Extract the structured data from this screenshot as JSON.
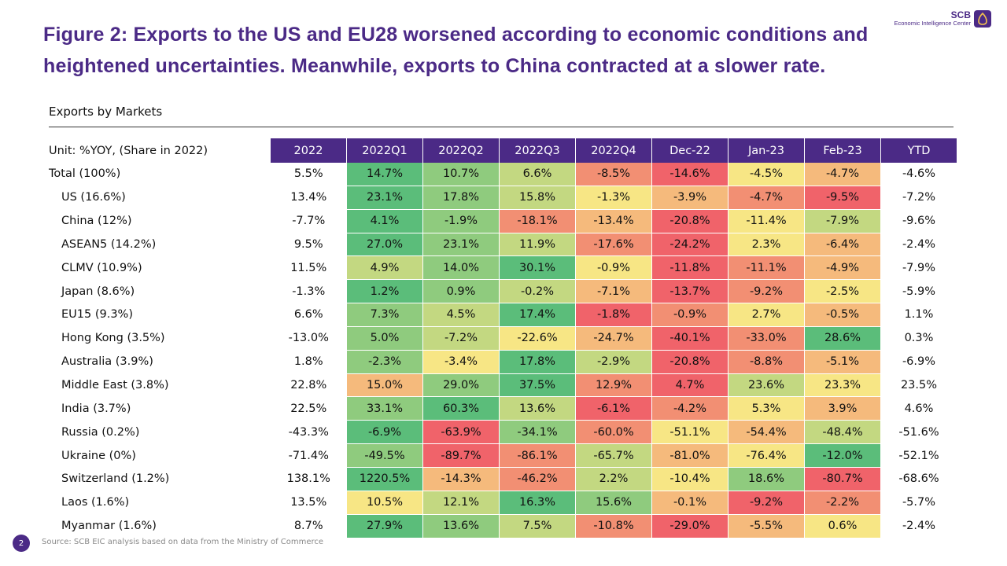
{
  "title": "Figure 2: Exports to the US and EU28 worsened according to economic conditions and heightened uncertainties. Meanwhile, exports to China contracted at a slower rate.",
  "logo": {
    "brand": "SCB",
    "unit": "Economic Intelligence Center"
  },
  "footer": {
    "source": "Source: SCB EIC analysis based on data from the Ministry of Commerce",
    "page": "2"
  },
  "colors": {
    "header_bg": "#4b2a86",
    "high": "#5bbd7a",
    "mid": "#f7e685",
    "low": "#f0636a"
  },
  "chart_data": {
    "type": "table",
    "title": "Exports by Markets",
    "unit_label": "Unit: %YOY, (Share in 2022)",
    "columns": [
      "2022",
      "2022Q1",
      "2022Q2",
      "2022Q3",
      "2022Q4",
      "Dec-22",
      "Jan-23",
      "Feb-23",
      "YTD"
    ],
    "colored_columns": [
      "2022Q1",
      "2022Q2",
      "2022Q3",
      "2022Q4",
      "Dec-22",
      "Jan-23",
      "Feb-23"
    ],
    "rows": [
      {
        "market": "Total (100%)",
        "values": [
          "5.5%",
          "14.7%",
          "10.7%",
          "6.6%",
          "-8.5%",
          "-14.6%",
          "-4.5%",
          "-4.7%",
          "-4.6%"
        ]
      },
      {
        "market": "US (16.6%)",
        "values": [
          "13.4%",
          "23.1%",
          "17.8%",
          "15.8%",
          "-1.3%",
          "-3.9%",
          "-4.7%",
          "-9.5%",
          "-7.2%"
        ]
      },
      {
        "market": "China (12%)",
        "values": [
          "-7.7%",
          "4.1%",
          "-1.9%",
          "-18.1%",
          "-13.4%",
          "-20.8%",
          "-11.4%",
          "-7.9%",
          "-9.6%"
        ]
      },
      {
        "market": "ASEAN5 (14.2%)",
        "values": [
          "9.5%",
          "27.0%",
          "23.1%",
          "11.9%",
          "-17.6%",
          "-24.2%",
          "2.3%",
          "-6.4%",
          "-2.4%"
        ]
      },
      {
        "market": "CLMV (10.9%)",
        "values": [
          "11.5%",
          "4.9%",
          "14.0%",
          "30.1%",
          "-0.9%",
          "-11.8%",
          "-11.1%",
          "-4.9%",
          "-7.9%"
        ]
      },
      {
        "market": "Japan (8.6%)",
        "values": [
          "-1.3%",
          "1.2%",
          "0.9%",
          "-0.2%",
          "-7.1%",
          "-13.7%",
          "-9.2%",
          "-2.5%",
          "-5.9%"
        ]
      },
      {
        "market": "EU15 (9.3%)",
        "values": [
          "6.6%",
          "7.3%",
          "4.5%",
          "17.4%",
          "-1.8%",
          "-0.9%",
          "2.7%",
          "-0.5%",
          "1.1%"
        ]
      },
      {
        "market": "Hong Kong  (3.5%)",
        "values": [
          "-13.0%",
          "5.0%",
          "-7.2%",
          "-22.6%",
          "-24.7%",
          "-40.1%",
          "-33.0%",
          "28.6%",
          "0.3%"
        ]
      },
      {
        "market": "Australia (3.9%)",
        "values": [
          "1.8%",
          "-2.3%",
          "-3.4%",
          "17.8%",
          "-2.9%",
          "-20.8%",
          "-8.8%",
          "-5.1%",
          "-6.9%"
        ]
      },
      {
        "market": "Middle East  (3.8%)",
        "values": [
          "22.8%",
          "15.0%",
          "29.0%",
          "37.5%",
          "12.9%",
          "4.7%",
          "23.6%",
          "23.3%",
          "23.5%"
        ]
      },
      {
        "market": "India (3.7%)",
        "values": [
          "22.5%",
          "33.1%",
          "60.3%",
          "13.6%",
          "-6.1%",
          "-4.2%",
          "5.3%",
          "3.9%",
          "4.6%"
        ]
      },
      {
        "market": "Russia (0.2%)",
        "values": [
          "-43.3%",
          "-6.9%",
          "-63.9%",
          "-34.1%",
          "-60.0%",
          "-51.1%",
          "-54.4%",
          "-48.4%",
          "-51.6%"
        ]
      },
      {
        "market": "Ukraine (0%)",
        "values": [
          "-71.4%",
          "-49.5%",
          "-89.7%",
          "-86.1%",
          "-65.7%",
          "-81.0%",
          "-76.4%",
          "-12.0%",
          "-52.1%"
        ]
      },
      {
        "market": "Switzerland (1.2%)",
        "values": [
          "138.1%",
          "1220.5%",
          "-14.3%",
          "-46.2%",
          "2.2%",
          "-10.4%",
          "18.6%",
          "-80.7%",
          "-68.6%"
        ]
      },
      {
        "market": "Laos (1.6%)",
        "values": [
          "13.5%",
          "10.5%",
          "12.1%",
          "16.3%",
          "15.6%",
          "-0.1%",
          "-9.2%",
          "-2.2%",
          "-5.7%"
        ]
      },
      {
        "market": "Myanmar (1.6%)",
        "values": [
          "8.7%",
          "27.9%",
          "13.6%",
          "7.5%",
          "-10.8%",
          "-29.0%",
          "-5.5%",
          "0.6%",
          "-2.4%"
        ]
      }
    ]
  }
}
